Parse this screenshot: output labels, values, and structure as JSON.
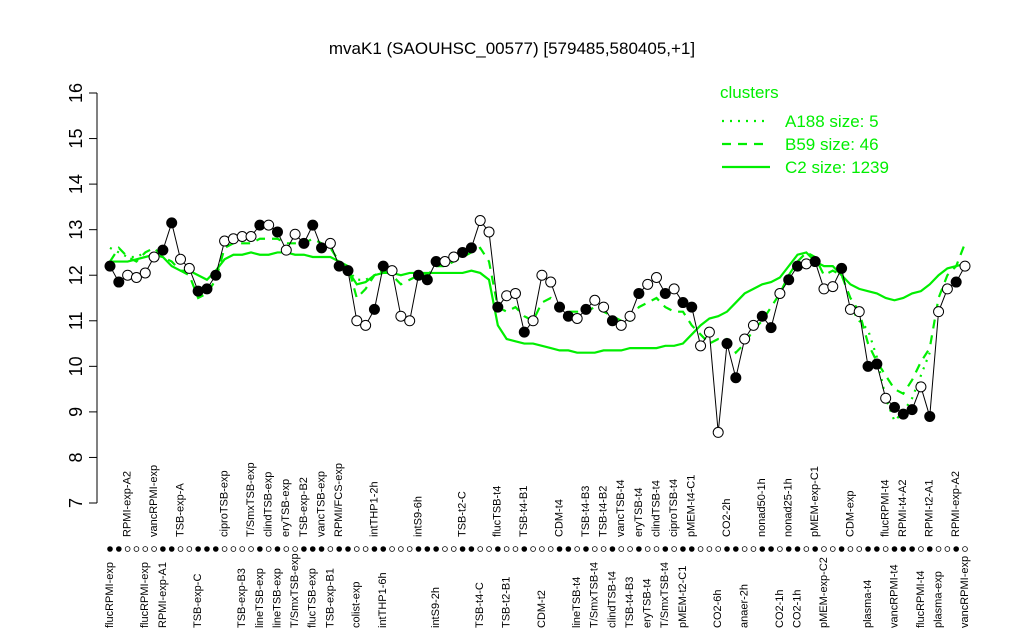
{
  "chart_data": {
    "type": "line",
    "title": "mvaK1 (SAOUHSC_00577) [579485,580405,+1]",
    "categories": [
      "flucRPMI-exp",
      null,
      "RPMI-exp-A2",
      null,
      "flucRPMI-exp",
      "vancRPMI-exp",
      "RPMI-exp-A1",
      null,
      "TSB-exp-A",
      null,
      "TSB-exp-C",
      null,
      null,
      "ciproTSB-exp",
      null,
      "TSB-exp-B3",
      "T/SmxTSB-exp",
      "lineTSB-exp",
      "clindTSB-exp",
      "lineTSB-exp",
      "eryTSB-exp",
      "T/SmxTSB-exp",
      "TSB-exp-B2",
      "flucTSB-exp",
      "vancTSB-exp",
      "TSB-exp-B1",
      "RPMI/FCS-exp",
      null,
      "colist-exp",
      null,
      "intTHP1-2h",
      "intTHP1-6h",
      null,
      null,
      null,
      "intS9-6h",
      null,
      "intS9-2h",
      null,
      null,
      "TSB-t2-C",
      null,
      "TSB-t4-C",
      null,
      "flucTSB-t4",
      "TSB-t2-B1",
      null,
      "TSB-t4-B1",
      null,
      "CDM-t2",
      null,
      "CDM-t4",
      null,
      "lineTSB-t4",
      "TSB-t4-B3",
      "T/SmxTSB-t4",
      "TSB-t4-B2",
      "clindTSB-t4",
      "vancTSB-t4",
      "TSB-t4-B3",
      "eryTSB-t4",
      "eryTSB-t4",
      "clindTSB-t4",
      "T/SmxTSB-t4",
      "ciproTSB-t4",
      "pMEM-t2-C1",
      "pMEM-t4-C1",
      null,
      null,
      "CO2-6h",
      "CO2-2h",
      null,
      "anaer-2h",
      null,
      "nonad50-1h",
      null,
      "CO2-1h",
      "nonad25-1h",
      "CO2-1h",
      null,
      "pMEM-exp-C1",
      "pMEM-exp-C2",
      null,
      null,
      "CDM-exp",
      null,
      "plasma-t4",
      null,
      "flucRPMI-t4",
      "vancRPMI-t4",
      "RPMI-t4-A2",
      null,
      "flucRPMI-t4",
      "RPMI-t2-A1",
      "plasma-exp",
      null,
      "RPMI-exp-A2",
      "vancRPMI-exp"
    ],
    "values": [
      12.2,
      11.85,
      12.0,
      11.95,
      12.05,
      12.4,
      12.55,
      13.15,
      12.35,
      12.15,
      11.65,
      11.7,
      12.0,
      12.75,
      12.8,
      12.85,
      12.85,
      13.1,
      13.1,
      12.95,
      12.55,
      12.9,
      12.7,
      13.1,
      12.6,
      12.7,
      12.2,
      12.1,
      11.0,
      10.9,
      11.25,
      12.2,
      12.1,
      11.1,
      11.0,
      12.0,
      11.9,
      12.3,
      12.3,
      12.4,
      12.5,
      12.6,
      13.2,
      12.95,
      11.3,
      11.55,
      11.6,
      10.75,
      11.0,
      12.0,
      11.85,
      11.3,
      11.1,
      11.05,
      11.25,
      11.45,
      11.3,
      11.0,
      10.9,
      11.1,
      11.6,
      11.8,
      11.95,
      11.6,
      11.7,
      11.4,
      11.3,
      10.45,
      10.75,
      8.55,
      10.5,
      9.75,
      10.6,
      10.9,
      11.1,
      10.85,
      11.6,
      11.9,
      12.2,
      12.25,
      12.3,
      11.7,
      11.75,
      12.15,
      11.25,
      11.2,
      10.0,
      10.05,
      9.3,
      9.1,
      8.95,
      9.05,
      9.55,
      8.9,
      11.2,
      11.7,
      11.85,
      12.2
    ],
    "filled": [
      true,
      true,
      false,
      false,
      false,
      false,
      true,
      true,
      false,
      false,
      true,
      true,
      true,
      false,
      false,
      false,
      false,
      true,
      false,
      true,
      false,
      false,
      true,
      true,
      true,
      false,
      true,
      true,
      false,
      false,
      true,
      true,
      false,
      false,
      false,
      true,
      true,
      true,
      false,
      false,
      true,
      true,
      false,
      false,
      true,
      false,
      false,
      true,
      false,
      false,
      false,
      true,
      true,
      false,
      true,
      false,
      false,
      true,
      false,
      false,
      true,
      false,
      false,
      true,
      false,
      true,
      true,
      false,
      false,
      false,
      true,
      true,
      false,
      false,
      true,
      true,
      false,
      true,
      true,
      false,
      true,
      false,
      false,
      true,
      false,
      false,
      true,
      true,
      false,
      true,
      true,
      true,
      false,
      true,
      false,
      false,
      true,
      false
    ],
    "color": "#000000",
    "legend_title": "clusters",
    "series": [
      {
        "name": "A188 size: 5",
        "color": "#00ee00",
        "style": "dotted",
        "values": [
          12.6,
          12.5,
          12.4,
          12.4,
          12.5,
          null,
          null,
          null,
          null,
          null,
          null,
          null,
          null,
          null,
          null,
          null,
          null,
          null,
          null,
          null,
          null,
          null,
          null,
          null,
          null,
          null,
          12.2,
          12.1,
          11.9,
          11.9,
          12.0,
          12.1,
          12.0,
          null,
          null,
          null,
          null,
          null,
          null,
          null,
          null,
          null,
          null,
          null,
          null,
          null,
          null,
          null,
          null,
          null,
          null,
          null,
          null,
          null,
          null,
          null,
          null,
          null,
          null,
          null,
          null,
          null,
          null,
          null,
          null,
          null,
          null,
          null,
          null,
          null,
          null,
          null,
          null,
          null,
          null,
          null,
          null,
          null,
          null,
          null,
          null,
          null,
          null,
          null,
          11.3,
          11.0,
          10.8,
          10.2,
          9.3,
          8.8,
          9.0,
          9.3,
          9.8,
          10.3,
          null,
          null,
          null,
          null
        ]
      },
      {
        "name": "B59 size: 46",
        "color": "#00ee00",
        "style": "dashed",
        "values": [
          12.3,
          12.6,
          12.4,
          12.3,
          12.5,
          12.6,
          12.4,
          12.3,
          12.1,
          12.0,
          11.5,
          11.6,
          11.9,
          12.6,
          12.7,
          12.7,
          12.7,
          12.8,
          12.8,
          12.8,
          12.7,
          12.7,
          12.7,
          12.8,
          12.7,
          12.6,
          12.3,
          12.2,
          11.5,
          11.7,
          12.0,
          12.1,
          12.0,
          11.8,
          11.9,
          12.0,
          12.0,
          12.2,
          12.2,
          12.3,
          12.4,
          12.5,
          12.6,
          12.3,
          11.3,
          11.2,
          11.3,
          11.1,
          11.0,
          11.4,
          11.5,
          11.3,
          11.2,
          11.2,
          11.2,
          11.3,
          11.2,
          11.1,
          11.0,
          11.0,
          11.3,
          11.4,
          11.5,
          11.3,
          11.2,
          11.2,
          10.9,
          10.7,
          10.5,
          10.6,
          10.6,
          10.3,
          10.5,
          10.8,
          11.0,
          11.3,
          11.6,
          12.0,
          12.3,
          12.5,
          12.4,
          12.0,
          12.1,
          12.0,
          11.5,
          11.2,
          10.5,
          10.1,
          9.8,
          9.5,
          9.4,
          9.7,
          10.1,
          10.4,
          11.5,
          12.0,
          12.2,
          12.7
        ]
      },
      {
        "name": "C2 size: 1239",
        "color": "#00ee00",
        "style": "solid",
        "values": [
          12.3,
          12.3,
          12.3,
          12.35,
          12.4,
          12.45,
          12.4,
          12.2,
          12.1,
          12.1,
          12.0,
          11.9,
          12.1,
          12.35,
          12.45,
          12.45,
          12.5,
          12.45,
          12.45,
          12.5,
          12.5,
          12.45,
          12.45,
          12.4,
          12.4,
          12.4,
          12.3,
          12.1,
          11.8,
          11.85,
          12.0,
          12.05,
          12.05,
          12.0,
          12.05,
          12.05,
          12.05,
          12.05,
          12.05,
          12.05,
          12.05,
          12.1,
          12.05,
          11.9,
          10.9,
          10.6,
          10.55,
          10.5,
          10.5,
          10.45,
          10.4,
          10.35,
          10.35,
          10.3,
          10.3,
          10.3,
          10.35,
          10.35,
          10.35,
          10.4,
          10.4,
          10.4,
          10.4,
          10.45,
          10.45,
          10.5,
          10.7,
          10.9,
          11.05,
          11.1,
          11.2,
          11.4,
          11.6,
          11.7,
          11.8,
          11.85,
          11.95,
          12.2,
          12.45,
          12.5,
          12.3,
          12.2,
          12.2,
          12.0,
          11.8,
          11.7,
          11.65,
          11.6,
          11.5,
          11.45,
          11.5,
          11.6,
          11.65,
          11.8,
          12.0,
          12.15,
          12.2,
          12.25
        ]
      }
    ],
    "ylim": [
      7,
      16
    ],
    "yticks": [
      7,
      8,
      9,
      10,
      11,
      12,
      13,
      14,
      15,
      16
    ]
  }
}
